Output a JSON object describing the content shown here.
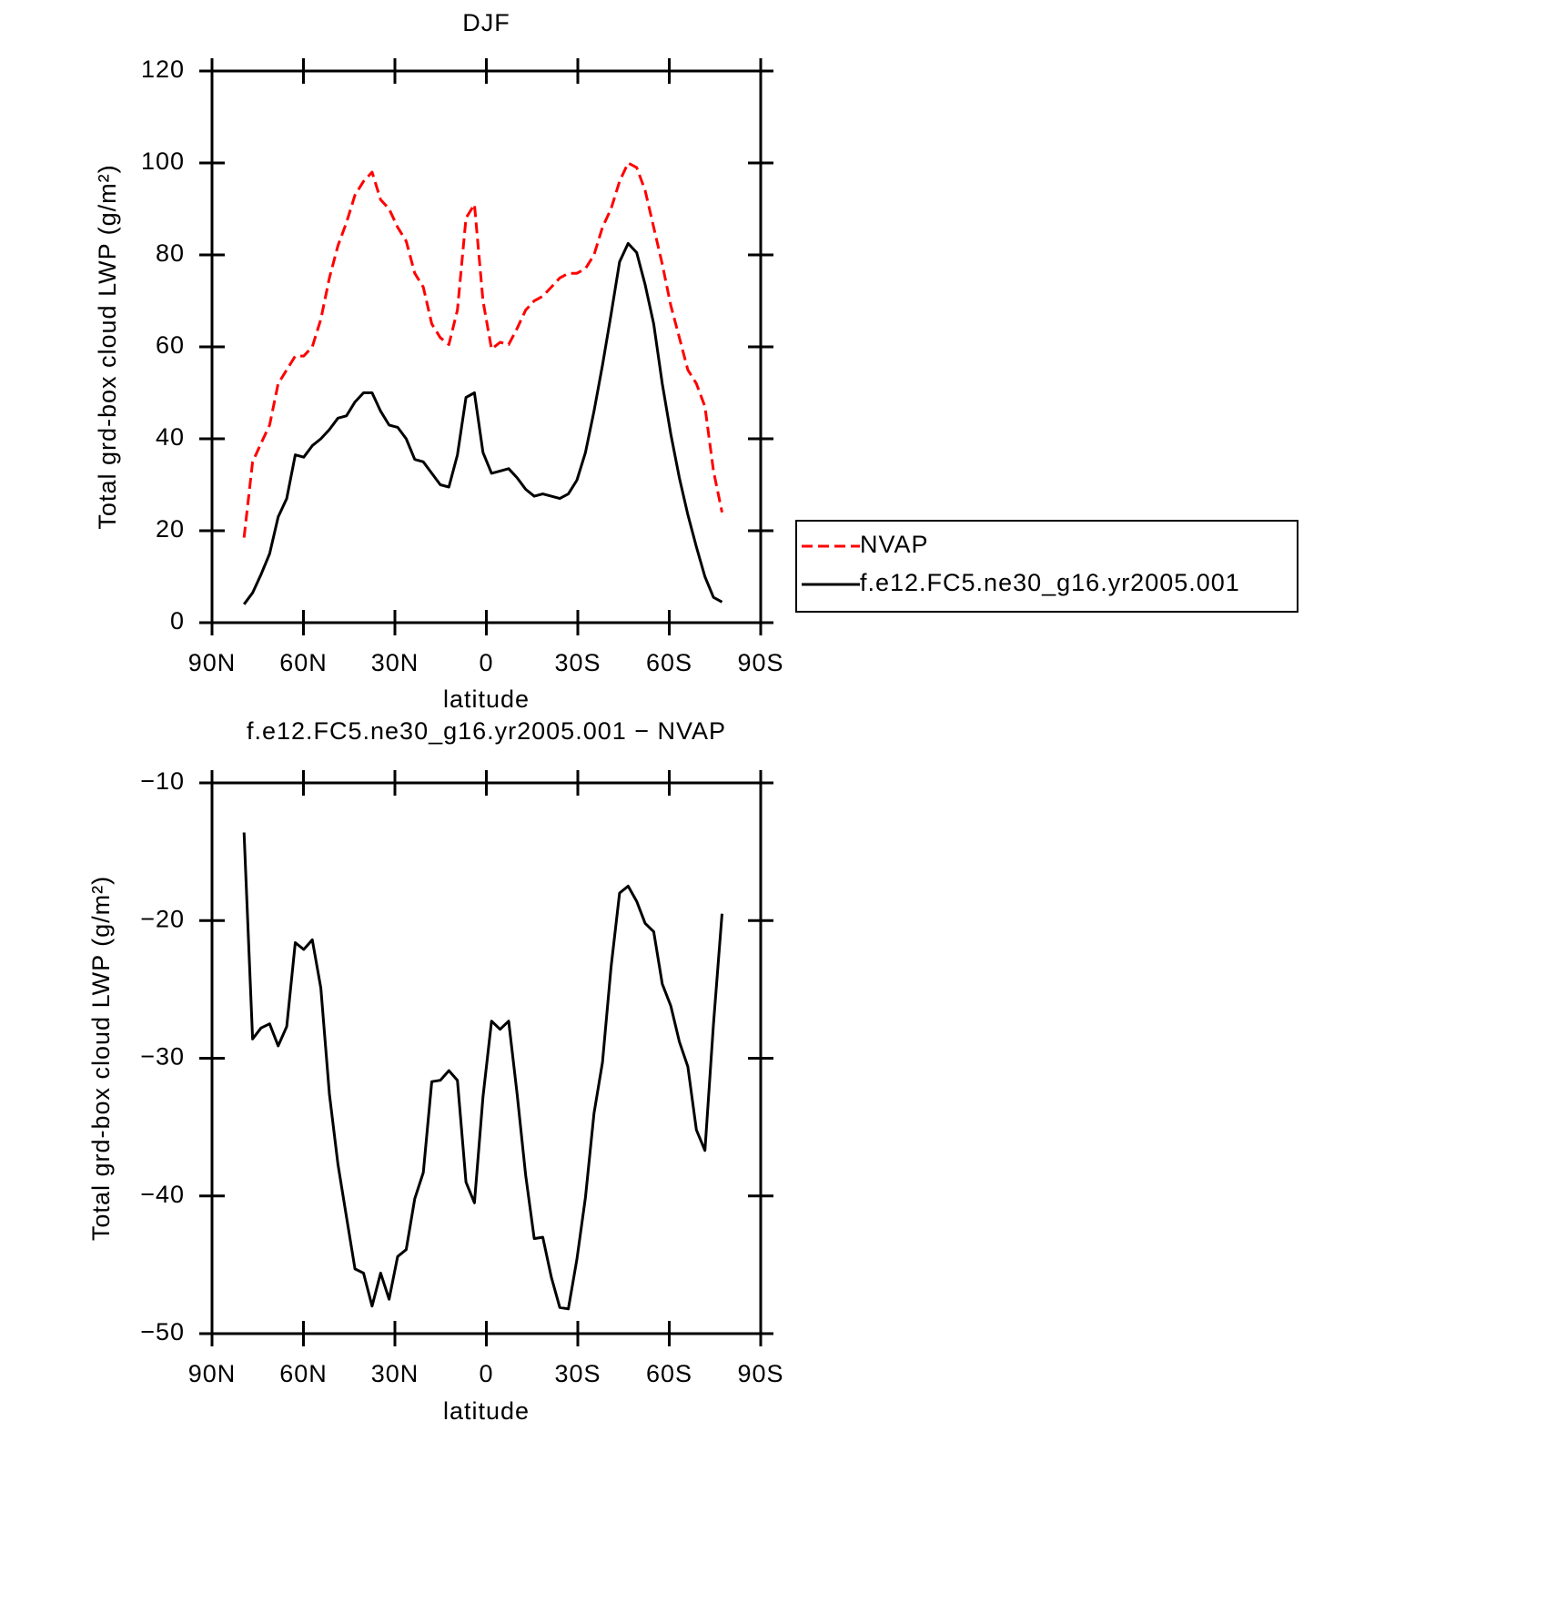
{
  "chart_data": [
    {
      "type": "line",
      "title": "DJF",
      "x_label": "latitude",
      "y_label": "Total grd-box cloud LWP (g/m²)",
      "x": [
        79.5,
        76.7,
        73.9,
        71.1,
        68.3,
        65.5,
        62.7,
        59.9,
        57.1,
        54.3,
        51.5,
        48.7,
        45.9,
        43.1,
        40.3,
        37.5,
        34.7,
        31.9,
        29.1,
        26.3,
        23.5,
        20.7,
        17.9,
        15.1,
        12.3,
        9.5,
        6.7,
        3.9,
        1.1,
        -1.7,
        -4.5,
        -7.3,
        -10.1,
        -12.9,
        -15.7,
        -18.5,
        -21.3,
        -24.1,
        -26.9,
        -29.7,
        -32.5,
        -35.3,
        -38.1,
        -40.9,
        -43.7,
        -46.5,
        -49.3,
        -52.1,
        -54.9,
        -57.7,
        -60.5,
        -63.3,
        -66.1,
        -68.9,
        -71.7,
        -74.5,
        -77.3
      ],
      "series": [
        {
          "name": "NVAP",
          "color": "#ff0000",
          "line_style": "dashed",
          "values": [
            18.5,
            35,
            39,
            43,
            52,
            55,
            58,
            58,
            60,
            66,
            75,
            82,
            87,
            93,
            96,
            98,
            92,
            90,
            86,
            83,
            76,
            73,
            65,
            62,
            60.5,
            68,
            88,
            91,
            70,
            59.5,
            61,
            60.5,
            64,
            68,
            70,
            71,
            73,
            75,
            76,
            76,
            77,
            80,
            86,
            90,
            96,
            100,
            99,
            94,
            86,
            78,
            69,
            62,
            55,
            52,
            47,
            33,
            24
          ]
        },
        {
          "name": "f.e12.FC5.ne30_g16.yr2005.001",
          "color": "#000000",
          "line_style": "solid",
          "values": [
            4,
            6.5,
            10.5,
            15,
            23,
            27,
            36.5,
            36,
            38.5,
            40,
            42,
            44.5,
            45,
            48,
            50,
            50,
            46,
            43,
            42.5,
            40,
            35.5,
            35,
            32.5,
            30,
            29.5,
            36.5,
            49,
            50,
            37,
            32.5,
            33,
            33.5,
            31.5,
            29,
            27.5,
            28,
            27.5,
            27,
            28,
            31,
            37,
            46,
            56,
            67,
            78.5,
            82.5,
            80.5,
            73.5,
            65,
            52,
            41,
            31.5,
            23.5,
            16.5,
            10,
            5.5,
            4.5
          ]
        }
      ],
      "xlim": [
        90,
        -90
      ],
      "xticks": [
        {
          "value": 90,
          "label": "90N"
        },
        {
          "value": 60,
          "label": "60N"
        },
        {
          "value": 30,
          "label": "30N"
        },
        0,
        {
          "value": -30,
          "label": "30S"
        },
        {
          "value": -60,
          "label": "60S"
        },
        {
          "value": -90,
          "label": "90S"
        }
      ],
      "ylim": [
        0,
        120
      ],
      "yticks": [
        0,
        20,
        40,
        60,
        80,
        100,
        120
      ],
      "legend": "right"
    },
    {
      "type": "line",
      "title": "f.e12.FC5.ne30_g16.yr2005.001 − NVAP",
      "x_label": "latitude",
      "y_label": "Total grd-box cloud LWP (g/m²)",
      "x": [
        79.5,
        76.7,
        73.9,
        71.1,
        68.3,
        65.5,
        62.7,
        59.9,
        57.1,
        54.3,
        51.5,
        48.7,
        45.9,
        43.1,
        40.3,
        37.5,
        34.7,
        31.9,
        29.1,
        26.3,
        23.5,
        20.7,
        17.9,
        15.1,
        12.3,
        9.5,
        6.7,
        3.9,
        1.1,
        -1.7,
        -4.5,
        -7.3,
        -10.1,
        -12.9,
        -15.7,
        -18.5,
        -21.3,
        -24.1,
        -26.9,
        -29.7,
        -32.5,
        -35.3,
        -38.1,
        -40.9,
        -43.7,
        -46.5,
        -49.3,
        -52.1,
        -54.9,
        -57.7,
        -60.5,
        -63.3,
        -66.1,
        -68.9,
        -71.7,
        -74.5,
        -77.3
      ],
      "values": [
        -13.6,
        -28.6,
        -27.8,
        -27.5,
        -29.1,
        -27.7,
        -21.6,
        -22.1,
        -21.4,
        -24.9,
        -32.6,
        -37.7,
        -41.5,
        -45.3,
        -45.6,
        -48,
        -45.6,
        -47.5,
        -44.4,
        -43.9,
        -40.2,
        -38.3,
        -31.7,
        -31.6,
        -30.9,
        -31.6,
        -39,
        -40.5,
        -32.8,
        -27.3,
        -27.9,
        -27.3,
        -32.6,
        -38.5,
        -43.1,
        -43,
        -45.9,
        -48.1,
        -48.2,
        -44.6,
        -40.1,
        -34,
        -30.3,
        -23.4,
        -18,
        -17.5,
        -18.6,
        -20.2,
        -20.8,
        -24.6,
        -26.2,
        -28.8,
        -30.6,
        -35.2,
        -36.7,
        -27.5,
        -19.5
      ],
      "color": "#000000",
      "xlim": [
        90,
        -90
      ],
      "xticks": [
        {
          "value": 90,
          "label": "90N"
        },
        {
          "value": 60,
          "label": "60N"
        },
        {
          "value": 30,
          "label": "30N"
        },
        0,
        {
          "value": -30,
          "label": "30S"
        },
        {
          "value": -60,
          "label": "60S"
        },
        {
          "value": -90,
          "label": "90S"
        }
      ],
      "ylim": [
        -50,
        -10
      ],
      "yticks": [
        {
          "value": -50,
          "label": "−50"
        },
        {
          "value": -40,
          "label": "−40"
        },
        {
          "value": -30,
          "label": "−30"
        },
        {
          "value": -20,
          "label": "−20"
        },
        {
          "value": -10,
          "label": "−10"
        }
      ]
    }
  ]
}
